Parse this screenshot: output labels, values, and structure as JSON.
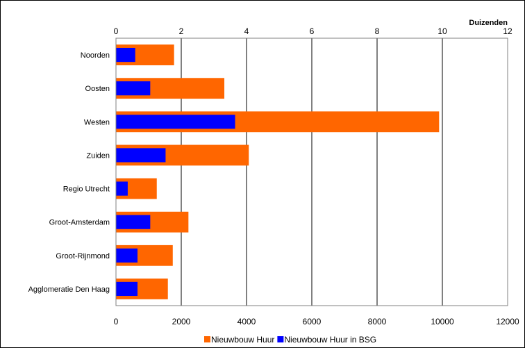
{
  "chart_data": {
    "type": "bar",
    "orientation": "horizontal",
    "grouping": "overlaid",
    "categories": [
      "Noorden",
      "Oosten",
      "Westen",
      "Zuiden",
      "Regio Utrecht",
      "Groot-Amsterdam",
      "Groot-Rijnmond",
      "Agglomeratie Den Haag"
    ],
    "series": [
      {
        "name": "Nieuwbouw Huur",
        "color": "#ff6600",
        "values": [
          1780,
          3320,
          9900,
          4070,
          1250,
          2220,
          1740,
          1590
        ]
      },
      {
        "name": "Nieuwbouw Huur in BSG",
        "color": "#0000ff",
        "values": [
          590,
          1050,
          3650,
          1520,
          360,
          1050,
          660,
          660
        ]
      }
    ],
    "top_axis": {
      "unit_label": "Duizenden",
      "ticks": [
        "0",
        "2",
        "4",
        "6",
        "8",
        "10",
        "12"
      ]
    },
    "bottom_axis": {
      "ticks": [
        "0",
        "2000",
        "4000",
        "6000",
        "8000",
        "10000",
        "12000"
      ]
    },
    "xlim": [
      0,
      12000
    ],
    "grid": "vertical",
    "legend_position": "bottom"
  }
}
